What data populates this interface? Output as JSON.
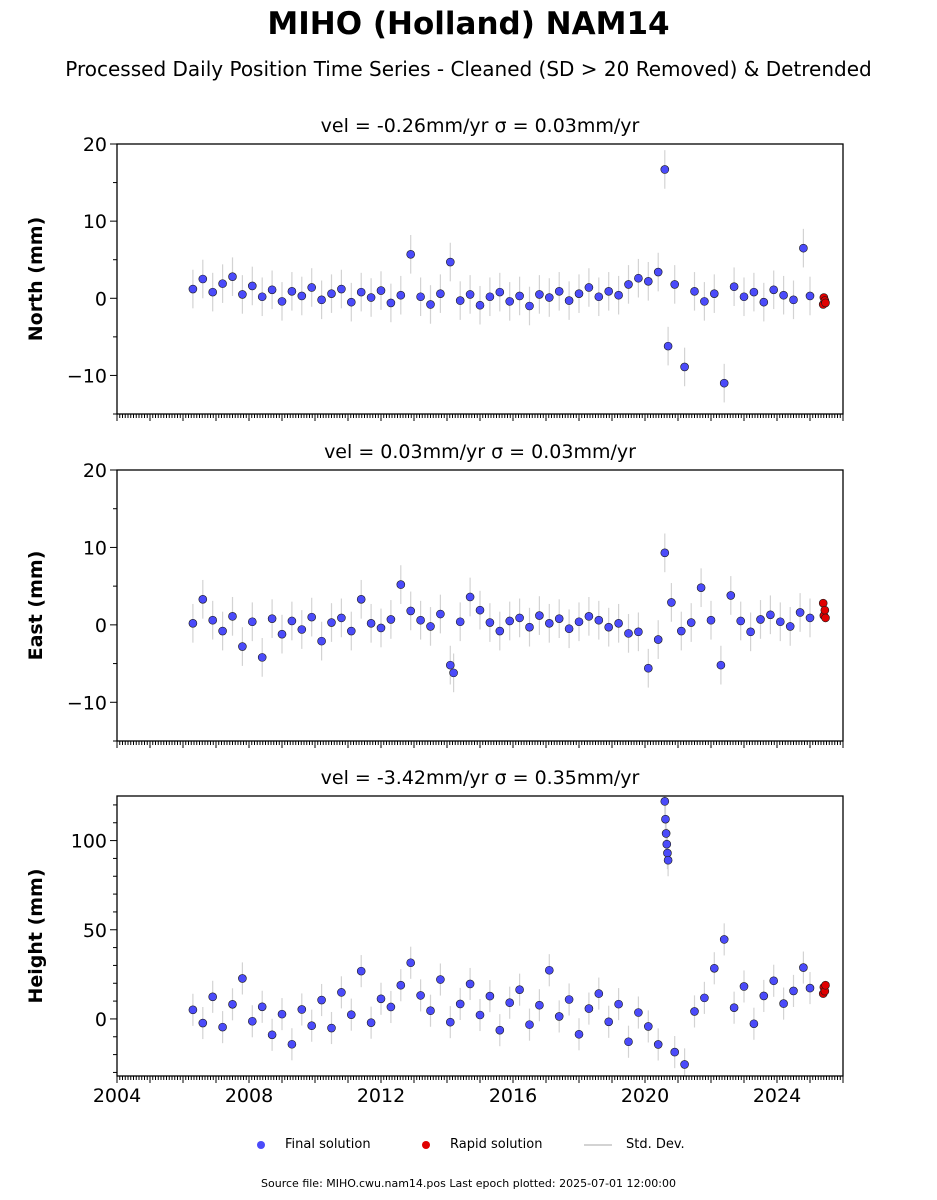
{
  "title": "MIHO (Holland) NAM14",
  "subtitle": "Processed Daily Position Time Series - Cleaned (SD > 20 Removed) & Detrended",
  "legend": {
    "final_label": "Final solution",
    "rapid_label": "Rapid solution",
    "sd_label": "Std. Dev."
  },
  "footer": "Source file: MIHO.cwu.nam14.pos  Last epoch plotted: 2025-07-01 12:00:00",
  "colors": {
    "final": "#4b4bfa",
    "rapid": "#e00000",
    "std_dev": "#d3d3d3",
    "marker_edge": "#1a1a1a"
  },
  "chart_data": [
    {
      "type": "scatter",
      "title": "vel = -0.26mm/yr   σ = 0.03mm/yr",
      "ylabel": "North (mm)",
      "xlim": [
        2004,
        2026
      ],
      "ylim": [
        -15,
        20
      ],
      "yticks": [
        -10,
        0,
        10,
        20
      ],
      "xticks": [
        2004,
        2008,
        2012,
        2016,
        2020,
        2024
      ],
      "grid": false,
      "series": [
        {
          "name": "Final solution",
          "x": [
            2006.3,
            2006.6,
            2006.9,
            2007.2,
            2007.5,
            2007.8,
            2008.1,
            2008.4,
            2008.7,
            2009.0,
            2009.3,
            2009.6,
            2009.9,
            2010.2,
            2010.5,
            2010.8,
            2011.1,
            2011.4,
            2011.7,
            2012.0,
            2012.3,
            2012.6,
            2012.9,
            2013.2,
            2013.5,
            2013.8,
            2014.1,
            2014.4,
            2014.7,
            2015.0,
            2015.3,
            2015.6,
            2015.9,
            2016.2,
            2016.5,
            2016.8,
            2017.1,
            2017.4,
            2017.7,
            2018.0,
            2018.3,
            2018.6,
            2018.9,
            2019.2,
            2019.5,
            2019.8,
            2020.1,
            2020.4,
            2020.6,
            2020.7,
            2020.9,
            2021.2,
            2021.5,
            2021.8,
            2022.1,
            2022.4,
            2022.7,
            2023.0,
            2023.3,
            2023.6,
            2023.9,
            2024.2,
            2024.5,
            2024.8,
            2025.0
          ],
          "y": [
            1.2,
            2.5,
            0.8,
            1.9,
            2.8,
            0.5,
            1.6,
            0.2,
            1.1,
            -0.4,
            0.9,
            0.3,
            1.4,
            -0.2,
            0.6,
            1.2,
            -0.5,
            0.8,
            0.1,
            1.0,
            -0.6,
            0.4,
            5.7,
            0.2,
            -0.8,
            0.6,
            4.7,
            -0.3,
            0.5,
            -0.9,
            0.2,
            0.8,
            -0.4,
            0.3,
            -1.0,
            0.5,
            0.1,
            0.9,
            -0.3,
            0.6,
            1.4,
            0.2,
            0.9,
            0.4,
            1.8,
            2.6,
            2.2,
            3.4,
            16.7,
            -6.2,
            1.8,
            -8.9,
            0.9,
            -0.4,
            0.6,
            -11.0,
            1.5,
            0.2,
            0.8,
            -0.5,
            1.1,
            0.4,
            -0.2,
            6.5,
            0.3
          ]
        },
        {
          "name": "Rapid solution",
          "x": [
            2025.4,
            2025.42,
            2025.45,
            2025.47
          ],
          "y": [
            -0.8,
            0.1,
            -0.3,
            -0.6
          ]
        }
      ]
    },
    {
      "type": "scatter",
      "title": "vel = 0.03mm/yr   σ = 0.03mm/yr",
      "ylabel": "East (mm)",
      "xlim": [
        2004,
        2026
      ],
      "ylim": [
        -15,
        20
      ],
      "yticks": [
        -10,
        0,
        10,
        20
      ],
      "xticks": [
        2004,
        2008,
        2012,
        2016,
        2020,
        2024
      ],
      "grid": false,
      "series": [
        {
          "name": "Final solution",
          "x": [
            2006.3,
            2006.6,
            2006.9,
            2007.2,
            2007.5,
            2007.8,
            2008.1,
            2008.4,
            2008.7,
            2009.0,
            2009.3,
            2009.6,
            2009.9,
            2010.2,
            2010.5,
            2010.8,
            2011.1,
            2011.4,
            2011.7,
            2012.0,
            2012.3,
            2012.6,
            2012.9,
            2013.2,
            2013.5,
            2013.8,
            2014.1,
            2014.2,
            2014.4,
            2014.7,
            2015.0,
            2015.3,
            2015.6,
            2015.9,
            2016.2,
            2016.5,
            2016.8,
            2017.1,
            2017.4,
            2017.7,
            2018.0,
            2018.3,
            2018.6,
            2018.9,
            2019.2,
            2019.5,
            2019.8,
            2020.1,
            2020.4,
            2020.6,
            2020.8,
            2021.1,
            2021.4,
            2021.7,
            2022.0,
            2022.3,
            2022.6,
            2022.9,
            2023.2,
            2023.5,
            2023.8,
            2024.1,
            2024.4,
            2024.7,
            2025.0
          ],
          "y": [
            0.2,
            3.3,
            0.6,
            -0.8,
            1.1,
            -2.8,
            0.4,
            -4.2,
            0.8,
            -1.2,
            0.5,
            -0.6,
            1.0,
            -2.1,
            0.3,
            0.9,
            -0.8,
            3.3,
            0.2,
            -0.4,
            0.7,
            5.2,
            1.8,
            0.6,
            -0.2,
            1.4,
            -5.2,
            -6.2,
            0.4,
            3.6,
            1.9,
            0.3,
            -0.8,
            0.5,
            0.9,
            -0.3,
            1.2,
            0.2,
            0.8,
            -0.5,
            0.4,
            1.1,
            0.6,
            -0.3,
            0.2,
            -1.1,
            -0.9,
            -5.6,
            -1.9,
            9.3,
            2.9,
            -0.8,
            0.3,
            4.8,
            0.6,
            -5.2,
            3.8,
            0.5,
            -0.9,
            0.7,
            1.3,
            0.4,
            -0.2,
            1.6,
            0.9
          ]
        },
        {
          "name": "Rapid solution",
          "x": [
            2025.4,
            2025.42,
            2025.45,
            2025.47
          ],
          "y": [
            2.8,
            1.2,
            1.9,
            0.9
          ]
        }
      ]
    },
    {
      "type": "scatter",
      "title": "vel = -3.42mm/yr   σ = 0.35mm/yr",
      "ylabel": "Height (mm)",
      "xlim": [
        2004,
        2026
      ],
      "ylim": [
        -32,
        125
      ],
      "yticks": [
        0,
        50,
        100
      ],
      "xticks": [
        2004,
        2008,
        2012,
        2016,
        2020,
        2024
      ],
      "grid": false,
      "series": [
        {
          "name": "Final solution",
          "x": [
            2006.3,
            2006.6,
            2006.9,
            2007.2,
            2007.5,
            2007.8,
            2008.1,
            2008.4,
            2008.7,
            2009.0,
            2009.3,
            2009.6,
            2009.9,
            2010.2,
            2010.5,
            2010.8,
            2011.1,
            2011.4,
            2011.7,
            2012.0,
            2012.3,
            2012.6,
            2012.9,
            2013.2,
            2013.5,
            2013.8,
            2014.1,
            2014.4,
            2014.7,
            2015.0,
            2015.3,
            2015.6,
            2015.9,
            2016.2,
            2016.5,
            2016.8,
            2017.1,
            2017.4,
            2017.7,
            2018.0,
            2018.3,
            2018.6,
            2018.9,
            2019.2,
            2019.5,
            2019.8,
            2020.1,
            2020.4,
            2020.6,
            2020.62,
            2020.64,
            2020.66,
            2020.68,
            2020.7,
            2020.9,
            2021.2,
            2021.5,
            2021.8,
            2022.1,
            2022.4,
            2022.7,
            2023.0,
            2023.3,
            2023.6,
            2023.9,
            2024.2,
            2024.5,
            2024.8,
            2025.0
          ],
          "y": [
            5.1,
            -2.3,
            12.4,
            -4.6,
            8.2,
            22.7,
            -1.3,
            6.8,
            -8.9,
            2.7,
            -14.2,
            5.3,
            -3.8,
            10.6,
            -5.1,
            14.9,
            2.4,
            26.8,
            -2.1,
            11.3,
            6.7,
            18.9,
            31.5,
            13.2,
            4.6,
            22.1,
            -1.8,
            8.4,
            19.6,
            2.2,
            12.8,
            -6.3,
            9.1,
            16.4,
            -3.2,
            7.7,
            27.3,
            1.4,
            10.9,
            -8.6,
            5.8,
            14.2,
            -1.6,
            8.3,
            -12.8,
            3.6,
            -4.2,
            -14.3,
            122.0,
            112.0,
            104.0,
            98.0,
            93.0,
            89.0,
            -18.6,
            -25.5,
            4.2,
            11.8,
            28.4,
            44.6,
            6.3,
            18.2,
            -2.7,
            12.9,
            21.4,
            8.6,
            15.7,
            28.8,
            17.3
          ]
        },
        {
          "name": "Rapid solution",
          "x": [
            2025.4,
            2025.42,
            2025.45,
            2025.47
          ],
          "y": [
            14.2,
            17.8,
            15.6,
            18.9
          ]
        }
      ]
    }
  ]
}
